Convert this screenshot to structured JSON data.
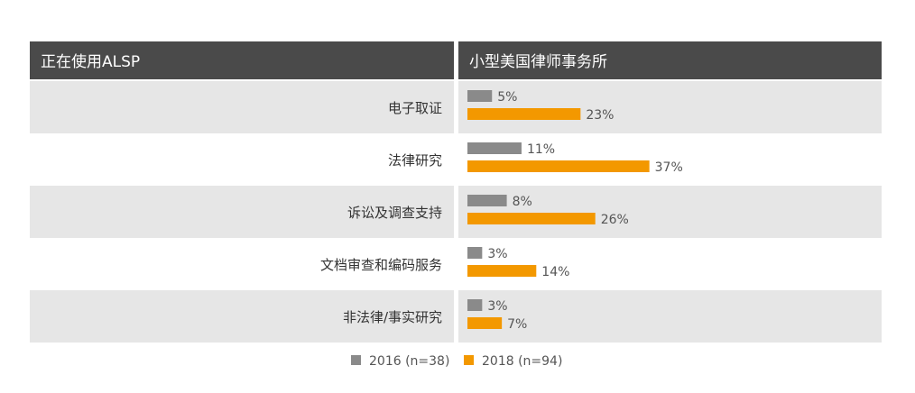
{
  "chart_data": {
    "type": "bar",
    "orientation": "horizontal",
    "left_header": "正在使用ALSP",
    "right_header": "小型美国律师事务所",
    "categories": [
      "电子取证",
      "法律研究",
      "诉讼及调查支持",
      "文档审查和编码服务",
      "非法律/事实研究"
    ],
    "series": [
      {
        "name": "2016 (n=38)",
        "values": [
          5,
          11,
          8,
          3,
          3
        ],
        "color": "#8a8a8a"
      },
      {
        "name": "2018 (n=94)",
        "values": [
          23,
          37,
          26,
          14,
          7
        ],
        "color": "#f39800"
      }
    ],
    "value_suffix": "%",
    "legend_position": "bottom",
    "header_color": "#4a4a4a",
    "row_band_color": "#e6e6e6"
  }
}
